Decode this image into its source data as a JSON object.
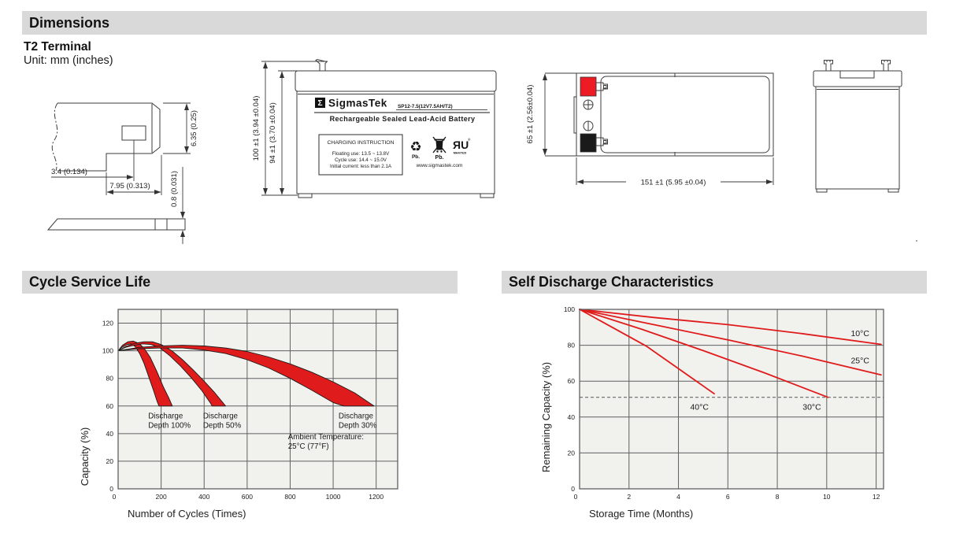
{
  "sections": {
    "dimensions": "Dimensions",
    "cycle_life": "Cycle Service Life",
    "self_discharge": "Self Discharge Characteristics"
  },
  "header": {
    "terminal_type": "T2 Terminal",
    "unit_note": "Unit: mm (inches)"
  },
  "colors": {
    "accent_red": "#e01b1b",
    "terminal_red": "#ed1c24",
    "terminal_black": "#1a1a1a",
    "section_bar_bg": "#d9d9d9",
    "plot_bg": "#f1f1ee",
    "grid": "#606060"
  },
  "drawings": {
    "terminal_detail": {
      "dim_hole_offset": "3.4 (0.134)",
      "dim_tab_length": "7.95 (0.313)",
      "dim_tab_width": "6.35 (0.25)",
      "dim_thickness": "0.8 (0.031)"
    },
    "front_view": {
      "dim_total_height": "100 ±1 (3.94 ±0.04)",
      "dim_case_height": "94 ±1 (3.70 ±0.04)"
    },
    "top_view": {
      "dim_width": "65 ±1 (2.56±0.04)",
      "dim_length": "151 ±1 (5.95 ±0.04)"
    },
    "label": {
      "logo_glyph": "Σ",
      "brand": "SigmasTek",
      "model": "SP12-7.5(12V7.5AH/T2)",
      "product_line": "Rechargeable Sealed Lead-Acid Battery",
      "charging_title": "CHARGING INSTRUCTION",
      "charging_line1": "Floating use: 13.5 ~ 13.8V",
      "charging_line2": "Cycle use: 14.4 ~ 15.0V",
      "charging_line3": "Initial current: less than 2.1A",
      "recycle_glyph": "♻",
      "pb_recycle": "Pb.",
      "pb_bin": "Pb.",
      "ul_mark": "ЯU",
      "ul_reg": "®",
      "ul_file": "MH47929",
      "website": "www.sigmastek.com"
    }
  },
  "chart_data": [
    {
      "id": "cycle-service-life",
      "type": "area",
      "title": "Cycle Service Life",
      "xlabel": "Number of Cycles (Times)",
      "ylabel": "Capacity (%)",
      "xlim": [
        0,
        1300
      ],
      "ylim": [
        0,
        130
      ],
      "xticks": [
        0,
        200,
        400,
        600,
        800,
        1000,
        1200
      ],
      "yticks": [
        0,
        20,
        40,
        60,
        80,
        100,
        120
      ],
      "grid": true,
      "legend": "none",
      "plot_bg": "#f1f1ee",
      "grid_color": "#606060",
      "band_fill": "#e01b1b",
      "band_stroke": "#1b1b1b",
      "bands": [
        {
          "name": "Discharge Depth 100%",
          "upper": [
            [
              0,
              100
            ],
            [
              20,
              104
            ],
            [
              45,
              106.5
            ],
            [
              70,
              107
            ],
            [
              95,
              105.5
            ],
            [
              120,
              102
            ],
            [
              150,
              95
            ],
            [
              180,
              85
            ],
            [
              210,
              74
            ],
            [
              235,
              66
            ],
            [
              252,
              60
            ]
          ],
          "lower": [
            [
              0,
              100
            ],
            [
              18,
              102.5
            ],
            [
              40,
              104.5
            ],
            [
              60,
              105
            ],
            [
              80,
              103
            ],
            [
              100,
              98
            ],
            [
              120,
              91
            ],
            [
              145,
              80
            ],
            [
              165,
              71
            ],
            [
              182,
              63
            ],
            [
              190,
              60
            ]
          ]
        },
        {
          "name": "Discharge Depth 50%",
          "upper": [
            [
              0,
              100
            ],
            [
              40,
              103.5
            ],
            [
              80,
              105.5
            ],
            [
              120,
              106.5
            ],
            [
              160,
              106.5
            ],
            [
              200,
              104.5
            ],
            [
              250,
              100
            ],
            [
              300,
              93.5
            ],
            [
              350,
              86
            ],
            [
              400,
              78
            ],
            [
              450,
              69.5
            ],
            [
              500,
              60
            ]
          ],
          "lower": [
            [
              0,
              100
            ],
            [
              35,
              102.5
            ],
            [
              75,
              104
            ],
            [
              115,
              105
            ],
            [
              155,
              104.5
            ],
            [
              195,
              102
            ],
            [
              240,
              96.5
            ],
            [
              290,
              89
            ],
            [
              340,
              80.5
            ],
            [
              390,
              71
            ],
            [
              430,
              62
            ],
            [
              437,
              60
            ]
          ]
        },
        {
          "name": "Discharge Depth 30%",
          "upper": [
            [
              0,
              100
            ],
            [
              100,
              102.5
            ],
            [
              200,
              103.5
            ],
            [
              300,
              104
            ],
            [
              400,
              103.5
            ],
            [
              500,
              102
            ],
            [
              600,
              99.5
            ],
            [
              700,
              95.5
            ],
            [
              800,
              90.5
            ],
            [
              900,
              84.5
            ],
            [
              1000,
              77.5
            ],
            [
              1100,
              69.5
            ],
            [
              1190,
              60
            ]
          ],
          "lower": [
            [
              0,
              100
            ],
            [
              100,
              101.5
            ],
            [
              200,
              102
            ],
            [
              300,
              102
            ],
            [
              400,
              100.5
            ],
            [
              500,
              98
            ],
            [
              600,
              93.5
            ],
            [
              700,
              87.5
            ],
            [
              800,
              80
            ],
            [
              900,
              71.5
            ],
            [
              1000,
              62.5
            ],
            [
              1050,
              60
            ]
          ]
        }
      ],
      "annotations": [
        {
          "text": "Discharge\nDepth 100%",
          "x": 140,
          "y": 51
        },
        {
          "text": "Discharge\nDepth 50%",
          "x": 395,
          "y": 51
        },
        {
          "text": "Discharge\nDepth 30%",
          "x": 1025,
          "y": 51
        },
        {
          "text": "Ambient Temperature:\n25°C (77°F)",
          "x": 790,
          "y": 36
        }
      ]
    },
    {
      "id": "self-discharge-characteristics",
      "type": "line",
      "title": "Self Discharge Characteristics",
      "xlabel": "Storage Time (Months)",
      "ylabel": "Remaining Capacity (%)",
      "xlim": [
        0,
        12.3
      ],
      "ylim": [
        0,
        100
      ],
      "xticks": [
        0,
        2,
        4,
        6,
        8,
        10,
        12
      ],
      "yticks": [
        0,
        20,
        40,
        60,
        80,
        100
      ],
      "grid": true,
      "legend": "inline-labels",
      "plot_bg": "#f1f1ee",
      "grid_color": "#606060",
      "line_color": "#e01b1b",
      "reference_line": {
        "y": 51,
        "style": "dashed"
      },
      "series": [
        {
          "name": "10°C",
          "points": [
            [
              0,
              100
            ],
            [
              3,
              95.5
            ],
            [
              6,
              91.5
            ],
            [
              9,
              86.5
            ],
            [
              12.2,
              80.5
            ]
          ],
          "label_pos": [
            11.35,
            85
          ]
        },
        {
          "name": "25°C",
          "points": [
            [
              0,
              100
            ],
            [
              3,
              91.5
            ],
            [
              6,
              83
            ],
            [
              9,
              74
            ],
            [
              12.2,
              63.5
            ]
          ],
          "label_pos": [
            11.35,
            70
          ]
        },
        {
          "name": "30°C",
          "points": [
            [
              0,
              100
            ],
            [
              2.5,
              89
            ],
            [
              5,
              77
            ],
            [
              7.5,
              64.5
            ],
            [
              10.05,
              51
            ]
          ],
          "label_pos": [
            9.4,
            44
          ]
        },
        {
          "name": "40°C",
          "points": [
            [
              0,
              100
            ],
            [
              2.7,
              79.5
            ],
            [
              5.45,
              53
            ]
          ],
          "label_pos": [
            4.85,
            44
          ]
        }
      ]
    }
  ]
}
